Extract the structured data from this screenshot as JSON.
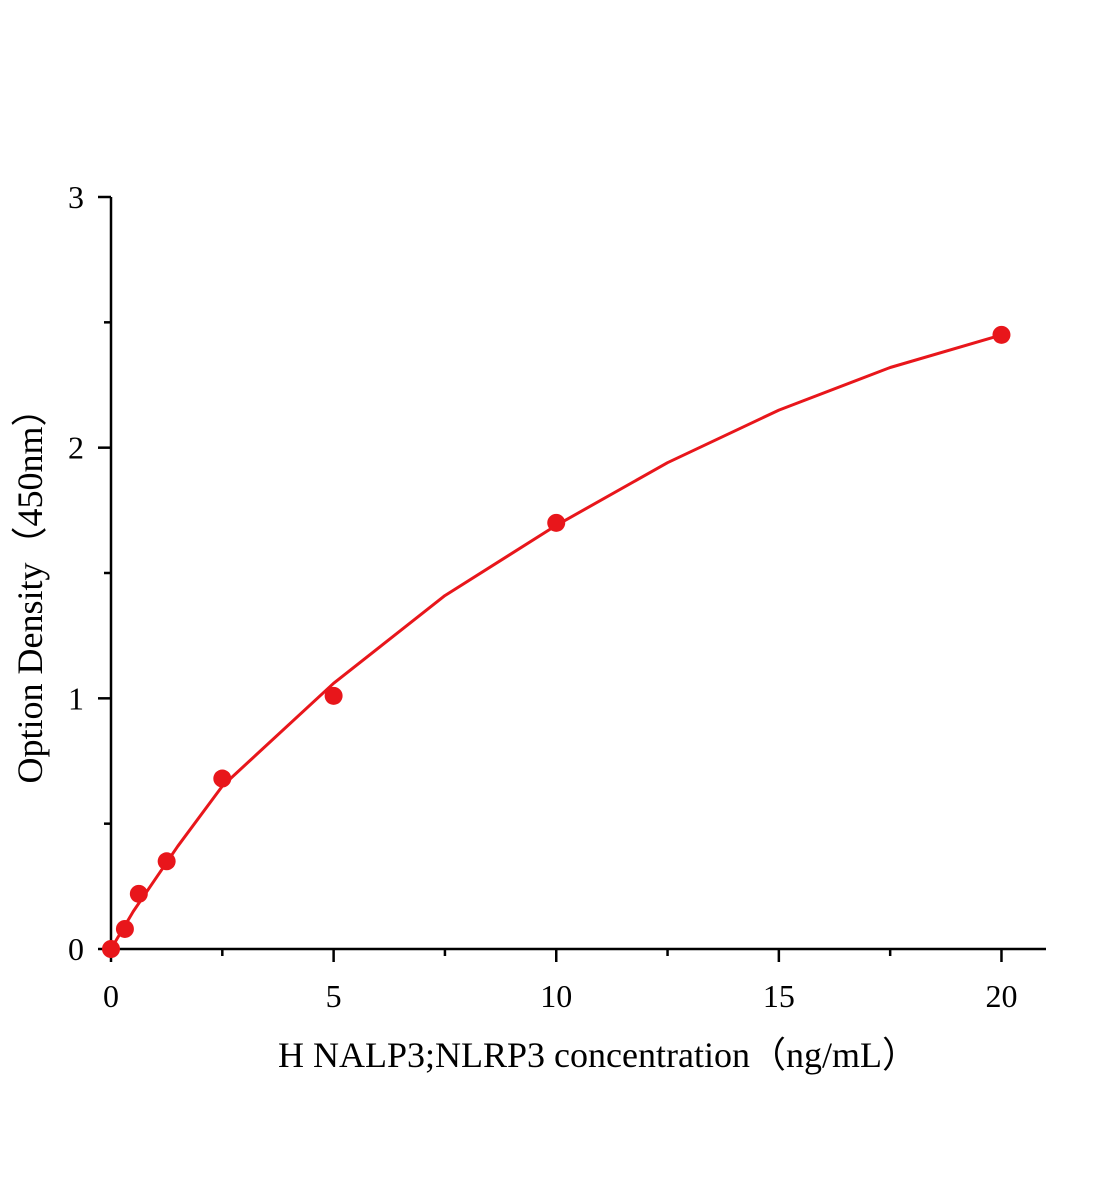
{
  "chart_data": {
    "type": "scatter",
    "x_label": "H NALP3;NLRP3 concentration（ng/mL）",
    "y_label": "Option Density（450nm）",
    "x": [
      0,
      0.3125,
      0.625,
      1.25,
      2.5,
      5,
      10,
      20
    ],
    "values": [
      0.0,
      0.08,
      0.22,
      0.35,
      0.68,
      1.01,
      1.7,
      2.45
    ],
    "color": "#e8161b",
    "curve": {
      "x": [
        0,
        0.5,
        1,
        1.5,
        2.5,
        5,
        7.5,
        10,
        12.5,
        15,
        17.5,
        20
      ],
      "values": [
        0,
        0.15,
        0.28,
        0.41,
        0.65,
        1.06,
        1.41,
        1.69,
        1.94,
        2.15,
        2.32,
        2.45
      ]
    },
    "xlim": [
      0,
      21
    ],
    "ylim": [
      0,
      3
    ],
    "xticks": [
      0,
      5,
      10,
      15,
      20
    ],
    "yticks": [
      0,
      1,
      2,
      3
    ],
    "xminor": [
      2.5,
      7.5,
      12.5,
      17.5
    ],
    "yminor": [
      0.5,
      1.5,
      2.5
    ]
  }
}
